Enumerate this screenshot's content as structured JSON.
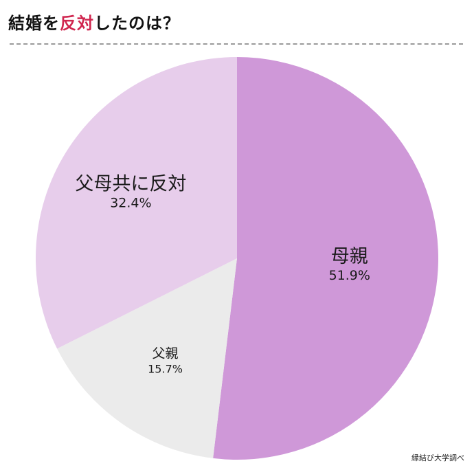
{
  "title": {
    "before": "結婚を",
    "highlight": "反対",
    "after": "したのは？"
  },
  "source": "縁結び大学調べ",
  "colors": {
    "highlight": "#d0264f",
    "divider": "#9a9a9a"
  },
  "chart_data": {
    "type": "pie",
    "title": "結婚を反対したのは？",
    "start": "12 o'clock, clockwise",
    "slices": [
      {
        "label": "母親",
        "value": 51.9,
        "value_label": "51.9%",
        "color": "#cf98d8"
      },
      {
        "label": "父親",
        "value": 15.7,
        "value_label": "15.7%",
        "color": "#ebebeb"
      },
      {
        "label": "父母共に反対",
        "value": 32.4,
        "value_label": "32.4%",
        "color": "#e7cdeb"
      }
    ]
  }
}
